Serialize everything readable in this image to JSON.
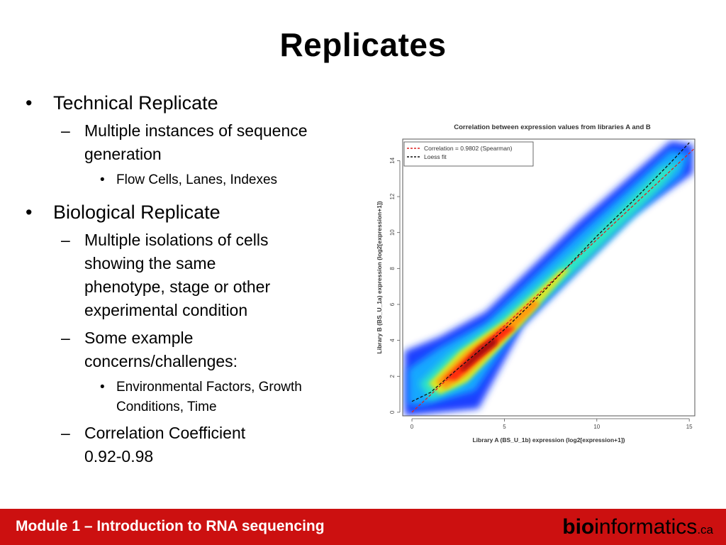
{
  "slide": {
    "title": "Replicates",
    "bullets": [
      {
        "marker": "•",
        "text": "Technical Replicate"
      },
      {
        "marker": "–",
        "text": "Multiple instances of sequence generation"
      },
      {
        "marker": "•",
        "text": "Flow Cells, Lanes, Indexes"
      },
      {
        "marker": "•",
        "text": "Biological Replicate"
      },
      {
        "marker": "–",
        "text": "Multiple isolations of cells showing the same phenotype, stage or other experimental condition"
      },
      {
        "marker": "–",
        "text": "Some example concerns/challenges:"
      },
      {
        "marker": "•",
        "text": "Environmental Factors, Growth Conditions, Time"
      },
      {
        "marker": "–",
        "text": "Correlation Coefficient 0.92-0.98"
      }
    ]
  },
  "footer": {
    "module": "Module 1 – Introduction to RNA sequencing",
    "brand_bold": "bio",
    "brand_rest": "informatics",
    "brand_tld": ".ca",
    "color": "#cc1010"
  },
  "chart_data": {
    "type": "scatter",
    "title": "Correlation between expression values from libraries A and B",
    "xlabel": "Library A (BS_U_1b) expression (log2[expression+1])",
    "ylabel": "Library B (BS_U_1a) expression (log2[expression+1])",
    "xlim": [
      -0.5,
      15.3
    ],
    "ylim": [
      -0.2,
      15.2
    ],
    "xticks": [
      0,
      5,
      10,
      15
    ],
    "yticks": [
      0,
      2,
      4,
      6,
      8,
      10,
      12,
      14
    ],
    "legend": {
      "position": "top-left",
      "entries": [
        {
          "label": "Correlation = 0.9802 (Spearman)",
          "color": "#dd2222",
          "style": "dashed"
        },
        {
          "label": "Loess fit",
          "color": "#111111",
          "style": "dashed"
        }
      ]
    },
    "lines": [
      {
        "name": "Correlation = 0.9802 (Spearman)",
        "x": [
          0,
          15.3
        ],
        "y": [
          0,
          14.7
        ],
        "color": "#dd2222"
      },
      {
        "name": "Loess fit",
        "x": [
          0,
          1,
          2,
          3.5,
          5,
          7,
          10,
          12,
          14,
          15
        ],
        "y": [
          0.6,
          1.1,
          2,
          3.3,
          4.6,
          6.6,
          9.8,
          11.8,
          13.9,
          15
        ],
        "color": "#111111"
      }
    ],
    "density_colors": [
      "#1f3fff",
      "#14a8ff",
      "#2fe6c4",
      "#d6e62a",
      "#ff9b10",
      "#ff2c10",
      "#a80a0a"
    ]
  }
}
